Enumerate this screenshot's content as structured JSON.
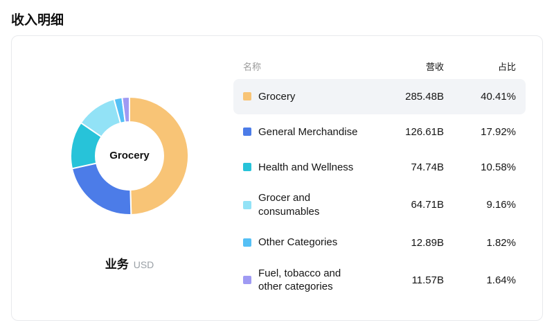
{
  "page": {
    "title": "收入明细"
  },
  "card": {
    "chart": {
      "center_label": "Grocery",
      "caption": {
        "label": "业务",
        "unit": "USD"
      }
    },
    "table": {
      "headers": {
        "name": "名称",
        "revenue": "营收",
        "share": "占比"
      },
      "rows": [
        {
          "name": "Grocery",
          "revenue": "285.48B",
          "share": "40.41%",
          "color": "#F8C476",
          "highlighted": true
        },
        {
          "name": "General Merchandise",
          "revenue": "126.61B",
          "share": "17.92%",
          "color": "#4C7CE8",
          "highlighted": false
        },
        {
          "name": "Health and Wellness",
          "revenue": "74.74B",
          "share": "10.58%",
          "color": "#27C3D9",
          "highlighted": false
        },
        {
          "name": "Grocer and consumables",
          "revenue": "64.71B",
          "share": "9.16%",
          "color": "#92E2F6",
          "highlighted": false
        },
        {
          "name": "Other Categories",
          "revenue": "12.89B",
          "share": "1.82%",
          "color": "#55C0F5",
          "highlighted": false
        },
        {
          "name": "Fuel, tobacco and other categories",
          "revenue": "11.57B",
          "share": "1.64%",
          "color": "#9F9AF3",
          "highlighted": false
        }
      ]
    }
  },
  "chart_data": {
    "type": "pie",
    "subtype": "donut",
    "title": "收入明细",
    "categories": [
      "Grocery",
      "General Merchandise",
      "Health and Wellness",
      "Grocer and consumables",
      "Other Categories",
      "Fuel, tobacco and other categories"
    ],
    "values": [
      285.48,
      126.61,
      74.74,
      64.71,
      12.89,
      11.57
    ],
    "value_unit": "B",
    "currency": "USD",
    "share_labels": [
      "40.41%",
      "17.92%",
      "10.58%",
      "9.16%",
      "1.82%",
      "1.64%"
    ],
    "colors": [
      "#F8C476",
      "#4C7CE8",
      "#27C3D9",
      "#92E2F6",
      "#55C0F5",
      "#9F9AF3"
    ],
    "selected_category": "Grocery",
    "legend_position": "right-table",
    "start_angle_deg": 0,
    "clockwise": true,
    "inner_radius_ratio": 0.56
  }
}
